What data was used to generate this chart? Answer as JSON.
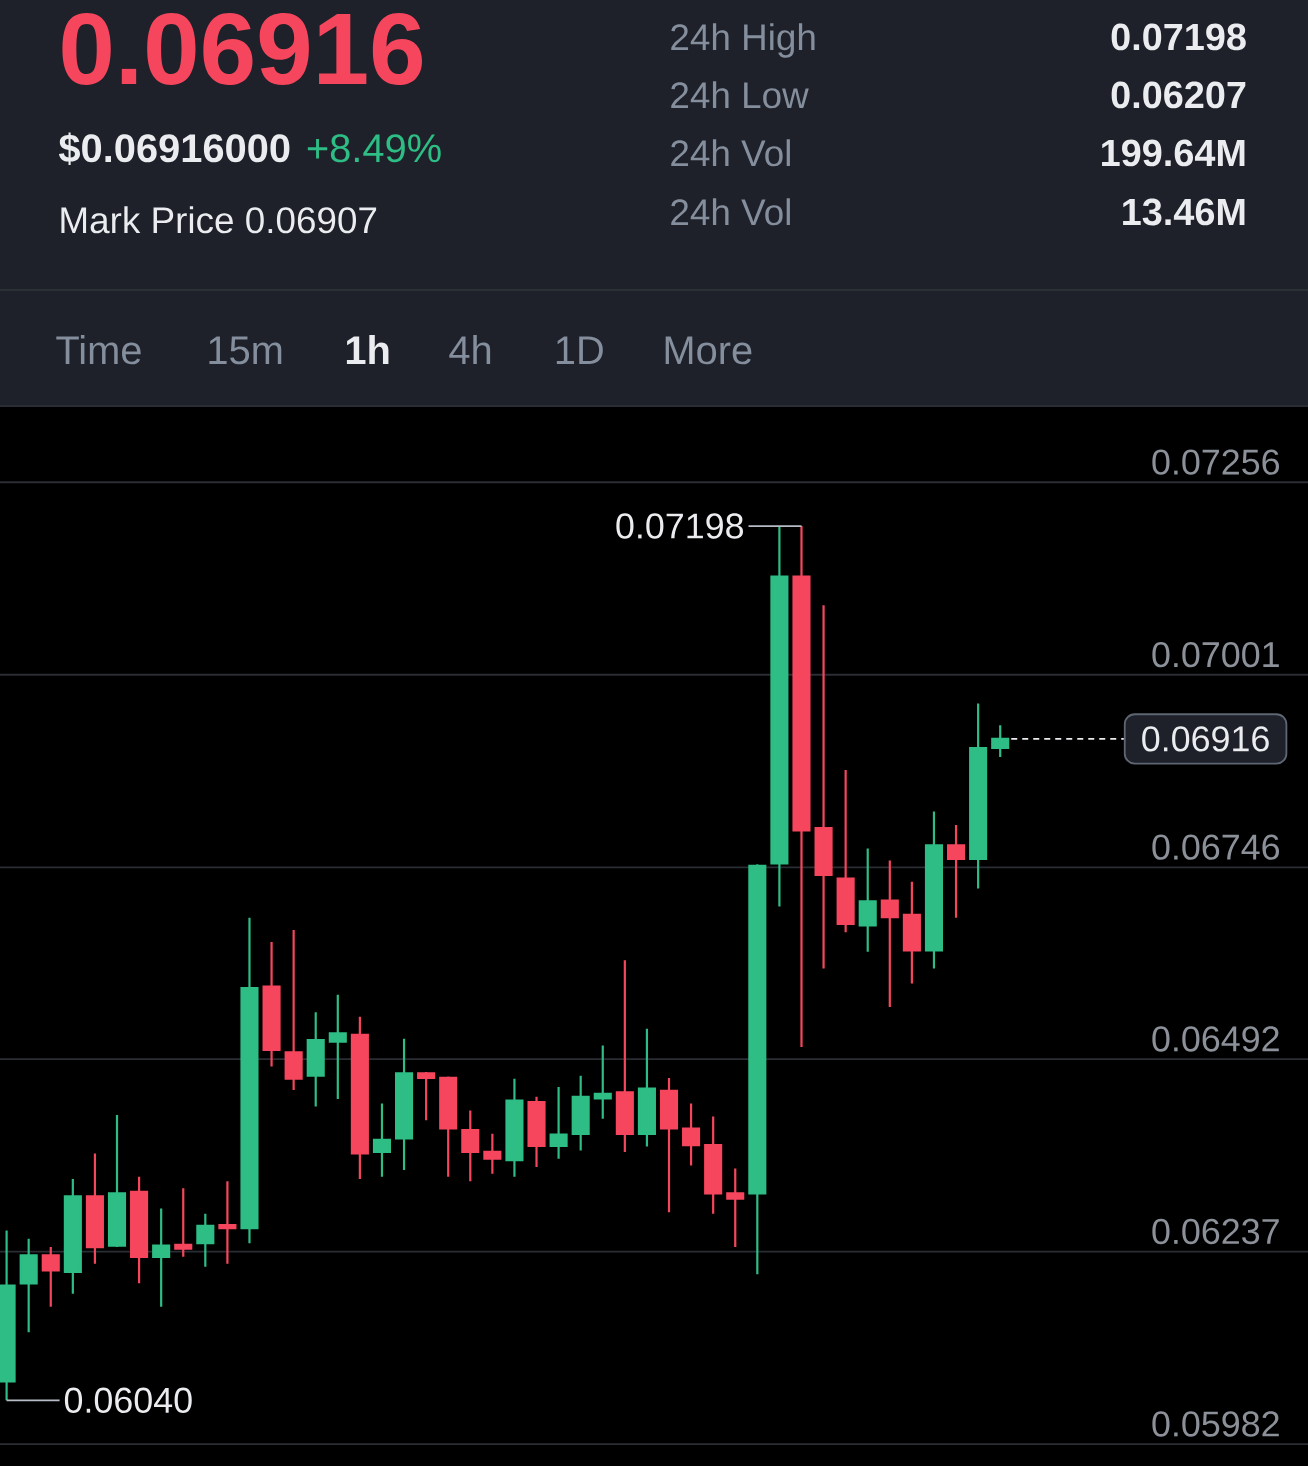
{
  "chart_data": {
    "type": "candlestick",
    "title": "0.06916",
    "subtitle": "$0.06916000",
    "annotations": [
      "+8.49%",
      "Mark Price 0.06907",
      "24h High",
      "0.07198",
      "24h Low",
      "0.06207",
      "24h Vol",
      "199.64M",
      "24h Vol",
      "13.46M",
      "Time",
      "15m",
      "1h",
      "4h",
      "1D",
      "More",
      "0.07198",
      "0.06040"
    ],
    "categories": [
      null,
      null,
      null,
      null,
      null,
      null,
      null,
      null,
      null,
      null,
      null,
      null,
      null,
      null,
      null,
      null,
      null,
      null,
      null,
      null,
      null,
      null,
      null,
      null,
      null,
      null,
      null,
      null,
      null,
      null,
      null,
      null,
      null,
      null,
      null,
      null,
      null,
      null,
      null,
      null,
      null,
      null,
      null,
      null,
      null,
      null
    ],
    "ohlc": [
      [
        0.06065,
        0.06265,
        0.0604,
        0.06192
      ],
      [
        0.06195,
        0.06254,
        0.0613,
        0.06232
      ],
      [
        0.06232,
        0.06243,
        0.06164,
        0.06212
      ],
      [
        0.0621,
        0.06333,
        0.06181,
        0.0631
      ],
      [
        0.0631,
        0.06367,
        0.06221,
        0.06243
      ],
      [
        0.06245,
        0.06418,
        0.06243,
        0.06314
      ],
      [
        0.06316,
        0.06336,
        0.06195,
        0.0623
      ],
      [
        0.0623,
        0.06294,
        0.06164,
        0.06245
      ],
      [
        0.06246,
        0.06321,
        0.0623,
        0.06241
      ],
      [
        0.06248,
        0.06287,
        0.06217,
        0.06271
      ],
      [
        0.06272,
        0.0633,
        0.06221,
        0.06268
      ],
      [
        0.06268,
        0.06679,
        0.06248,
        0.06586
      ],
      [
        0.06588,
        0.06647,
        0.06482,
        0.06504
      ],
      [
        0.06501,
        0.06663,
        0.06451,
        0.06466
      ],
      [
        0.0647,
        0.06554,
        0.06429,
        0.06517
      ],
      [
        0.06515,
        0.06577,
        0.06439,
        0.06526
      ],
      [
        0.06524,
        0.06548,
        0.06333,
        0.06367
      ],
      [
        0.06369,
        0.06433,
        0.06336,
        0.06385
      ],
      [
        0.06387,
        0.06519,
        0.06345,
        0.06473
      ],
      [
        0.06473,
        0.06475,
        0.06411,
        0.06467
      ],
      [
        0.06467,
        0.06469,
        0.06336,
        0.064
      ],
      [
        0.06398,
        0.06424,
        0.0633,
        0.06369
      ],
      [
        0.06369,
        0.06393,
        0.0634,
        0.0636
      ],
      [
        0.06358,
        0.06466,
        0.06336,
        0.06437
      ],
      [
        0.06435,
        0.06442,
        0.06349,
        0.06377
      ],
      [
        0.06377,
        0.06455,
        0.0636,
        0.06392
      ],
      [
        0.06393,
        0.0647,
        0.06371,
        0.06442
      ],
      [
        0.0644,
        0.0651,
        0.06413,
        0.06446
      ],
      [
        0.06448,
        0.06623,
        0.06369,
        0.06393
      ],
      [
        0.06393,
        0.06532,
        0.06376,
        0.06453
      ],
      [
        0.0645,
        0.06467,
        0.06289,
        0.064
      ],
      [
        0.064,
        0.06433,
        0.06351,
        0.06378
      ],
      [
        0.06378,
        0.06416,
        0.06287,
        0.06314
      ],
      [
        0.06314,
        0.06347,
        0.06243,
        0.06307
      ],
      [
        0.06314,
        0.0675,
        0.06207,
        0.06748
      ],
      [
        0.06751,
        0.07198,
        0.06694,
        0.07131
      ],
      [
        0.07131,
        0.07198,
        0.06508,
        0.06795
      ],
      [
        0.06798,
        0.07093,
        0.06612,
        0.06736
      ],
      [
        0.06731,
        0.06875,
        0.0666,
        0.06671
      ],
      [
        0.06669,
        0.06771,
        0.06634,
        0.06701
      ],
      [
        0.06702,
        0.06755,
        0.06561,
        0.0668
      ],
      [
        0.06683,
        0.06727,
        0.06592,
        0.06636
      ],
      [
        0.06636,
        0.0682,
        0.06612,
        0.06775
      ],
      [
        0.06775,
        0.06802,
        0.06679,
        0.06757
      ],
      [
        0.06757,
        0.06963,
        0.06718,
        0.06904
      ],
      [
        0.06904,
        0.06934,
        0.06892,
        0.06916
      ]
    ],
    "colors": [
      "#2ebd85",
      "#2ebd85",
      "#f6465d",
      "#2ebd85",
      "#f6465d",
      "#2ebd85",
      "#f6465d",
      "#2ebd85",
      "#f6465d",
      "#2ebd85",
      "#f6465d",
      "#2ebd85",
      "#f6465d",
      "#f6465d",
      "#2ebd85",
      "#2ebd85",
      "#f6465d",
      "#2ebd85",
      "#2ebd85",
      "#f6465d",
      "#f6465d",
      "#f6465d",
      "#f6465d",
      "#2ebd85",
      "#f6465d",
      "#2ebd85",
      "#2ebd85",
      "#2ebd85",
      "#f6465d",
      "#2ebd85",
      "#f6465d",
      "#f6465d",
      "#f6465d",
      "#f6465d",
      "#2ebd85",
      "#2ebd85",
      "#f6465d",
      "#f6465d",
      "#f6465d",
      "#2ebd85",
      "#f6465d",
      "#f6465d",
      "#2ebd85",
      "#f6465d",
      "#2ebd85",
      "#2ebd85"
    ],
    "ylim": [
      0.05953,
      0.07357
    ],
    "yticks": [
      0.05982,
      0.06237,
      0.06492,
      0.06746,
      0.07001,
      0.07256
    ],
    "grid": "y",
    "tick_labels": "y",
    "ref_lines": [
      {
        "axis": "y",
        "value": 0.06916,
        "label": "0.06916",
        "color": "#eaecef",
        "line_style": "dashed"
      }
    ]
  }
}
